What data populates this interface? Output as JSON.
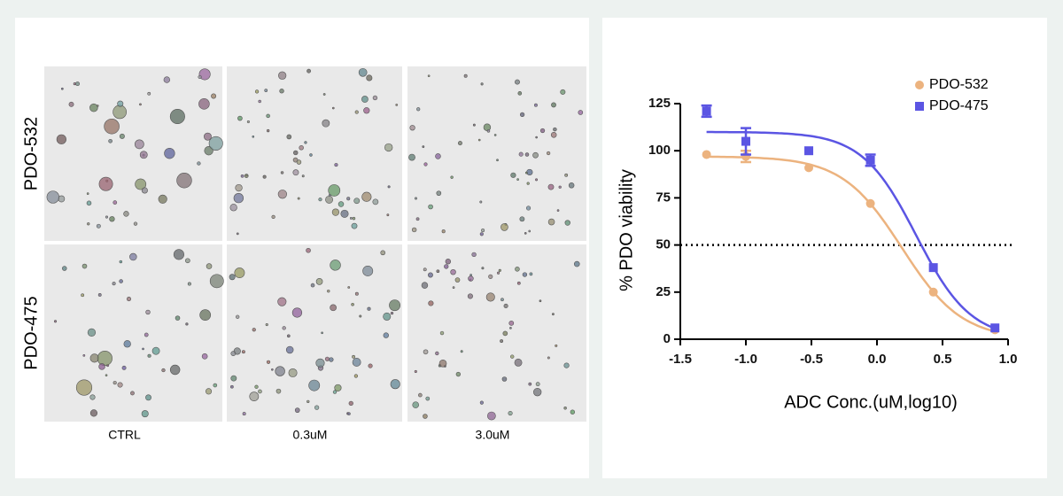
{
  "images": {
    "rows": [
      "PDO-532",
      "PDO-475"
    ],
    "columns": [
      "CTRL",
      "0.3uM",
      "3.0uM"
    ]
  },
  "chart_data": {
    "type": "scatter",
    "xlabel": "ADC Conc.(uM,log10)",
    "ylabel": "% PDO viability",
    "xlim": [
      -1.5,
      1.0
    ],
    "ylim": [
      0,
      125
    ],
    "xticks": [
      {
        "value": -1.5,
        "label": "-1.5"
      },
      {
        "value": -1.0,
        "label": "-1.0"
      },
      -0.5,
      {
        "value": 0,
        "label": "0.0"
      },
      0.5,
      {
        "value": 1.0,
        "label": "1.0"
      }
    ],
    "yticks": [
      0,
      25,
      50,
      75,
      100,
      125
    ],
    "reference_line": 50,
    "legend": "top-right",
    "series": [
      {
        "name": "PDO-532",
        "color": "#ecb37f",
        "marker": "circle",
        "x": [
          -1.3,
          -1.0,
          -0.52,
          -0.05,
          0.43,
          0.9
        ],
        "values": [
          98,
          97,
          91,
          72,
          25,
          5
        ],
        "errors": [
          null,
          3,
          null,
          null,
          null,
          null
        ]
      },
      {
        "name": "PDO-475",
        "color": "#5b55e3",
        "marker": "square",
        "x": [
          -1.3,
          -1.0,
          -0.52,
          -0.05,
          0.43,
          0.9
        ],
        "values": [
          121,
          105,
          100,
          95,
          38,
          6
        ],
        "errors": [
          3,
          7,
          null,
          3,
          null,
          null
        ]
      }
    ]
  }
}
